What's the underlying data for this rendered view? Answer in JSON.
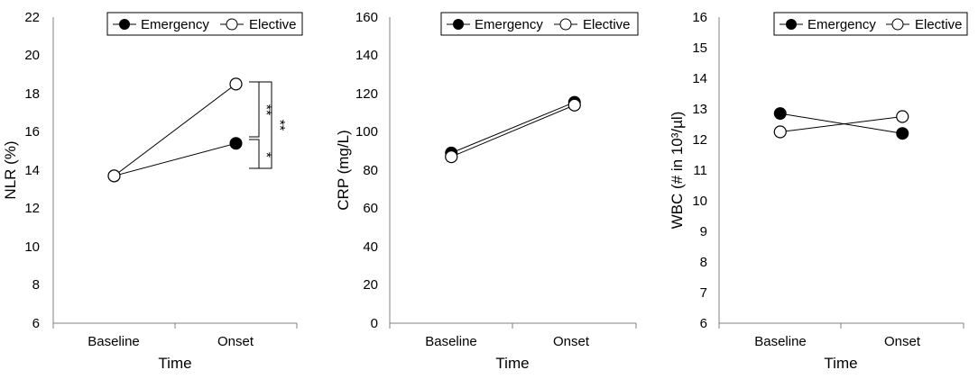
{
  "chart_data": [
    {
      "type": "line",
      "xlabel": "Time",
      "ylabel": "NLR (%)",
      "categories": [
        "Baseline",
        "Onset"
      ],
      "ylim": [
        6,
        22
      ],
      "yticks": [
        6,
        8,
        10,
        12,
        14,
        16,
        18,
        20,
        22
      ],
      "legend_position": "top-right",
      "series": [
        {
          "name": "Emergency",
          "marker": "filled-circle",
          "values": [
            13.7,
            15.4
          ]
        },
        {
          "name": "Elective",
          "marker": "open-circle",
          "values": [
            13.7,
            18.5
          ]
        }
      ],
      "annotations": [
        {
          "label": "**",
          "between": [
            "Elective@Onset",
            "Onset mid"
          ]
        },
        {
          "label": "*",
          "between": [
            "Onset mid",
            "Emergency@Onset"
          ]
        },
        {
          "label": "**",
          "between": [
            "Elective@Onset",
            "Emergency@Onset"
          ]
        }
      ]
    },
    {
      "type": "line",
      "xlabel": "Time",
      "ylabel": "CRP (mg/L)",
      "categories": [
        "Baseline",
        "Onset"
      ],
      "ylim": [
        0,
        160
      ],
      "yticks": [
        0,
        20,
        40,
        60,
        80,
        100,
        120,
        140,
        160
      ],
      "legend_position": "top-right",
      "series": [
        {
          "name": "Emergency",
          "marker": "filled-circle",
          "values": [
            89,
            115.5
          ]
        },
        {
          "name": "Elective",
          "marker": "open-circle",
          "values": [
            87,
            114
          ]
        }
      ]
    },
    {
      "type": "line",
      "xlabel": "Time",
      "ylabel": "WBC (# in 10³/µl)",
      "categories": [
        "Baseline",
        "Onset"
      ],
      "ylim": [
        6,
        16
      ],
      "yticks": [
        6,
        7,
        8,
        9,
        10,
        11,
        12,
        13,
        14,
        15,
        16
      ],
      "legend_position": "top-right",
      "series": [
        {
          "name": "Emergency",
          "marker": "filled-circle",
          "values": [
            12.85,
            12.2
          ]
        },
        {
          "name": "Elective",
          "marker": "open-circle",
          "values": [
            12.25,
            12.75
          ]
        }
      ]
    }
  ]
}
